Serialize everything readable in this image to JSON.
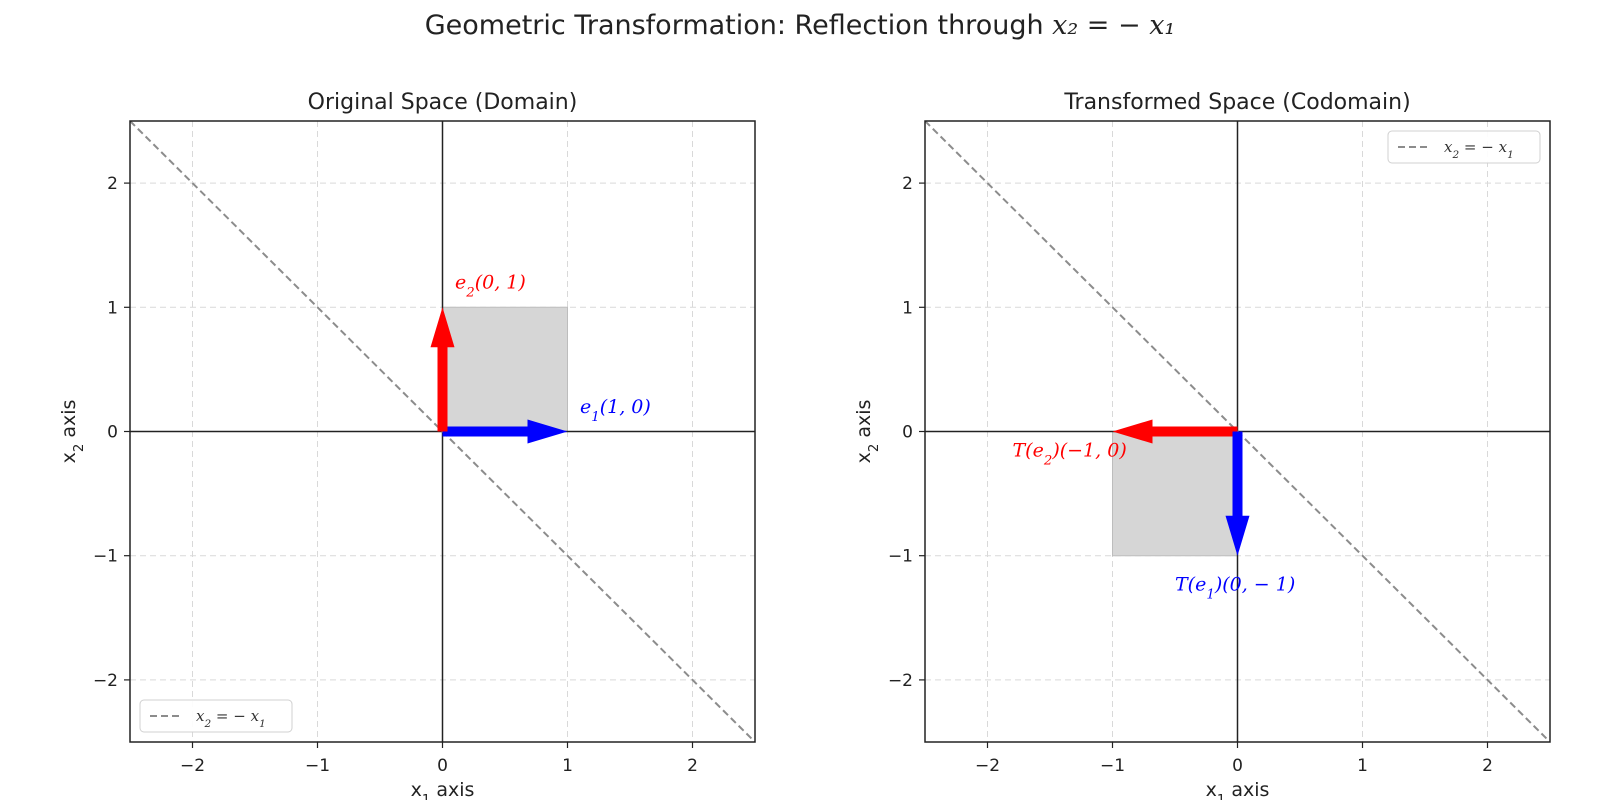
{
  "figure": {
    "title_prefix": "Geometric Transformation: Reflection through ",
    "title_math": "x₂ = − x₁"
  },
  "chart_data": [
    {
      "type": "line",
      "title": "Original Space (Domain)",
      "xlabel": "x₁ axis",
      "ylabel": "x₂ axis",
      "xlim": [
        -2.5,
        2.5
      ],
      "ylim": [
        -2.5,
        2.5
      ],
      "xticks": [
        -2,
        -1,
        0,
        1,
        2
      ],
      "yticks": [
        -2,
        -1,
        0,
        1,
        2
      ],
      "xtick_labels": [
        "−2",
        "−1",
        "0",
        "1",
        "2"
      ],
      "ytick_labels": [
        "−2",
        "−1",
        "0",
        "1",
        "2"
      ],
      "grid": true,
      "legend": {
        "position": "lower-left",
        "entries": [
          "x₂ = − x₁"
        ]
      },
      "reflection_line": {
        "label": "x₂ = − x₁",
        "points": [
          [
            -2.5,
            2.5
          ],
          [
            2.5,
            -2.5
          ]
        ],
        "color": "#8c8c8c",
        "style": "dashed"
      },
      "shaded_square": {
        "corners": [
          [
            0,
            0
          ],
          [
            1,
            0
          ],
          [
            1,
            1
          ],
          [
            0,
            1
          ]
        ],
        "color": "#d6d6d6"
      },
      "vectors": [
        {
          "name": "e1",
          "label": "e₁(1, 0)",
          "from": [
            0,
            0
          ],
          "to": [
            1,
            0
          ],
          "color": "#0000ff",
          "label_at": [
            1.1,
            0.15
          ]
        },
        {
          "name": "e2",
          "label": "e₂(0, 1)",
          "from": [
            0,
            0
          ],
          "to": [
            0,
            1
          ],
          "color": "#ff0000",
          "label_at": [
            0.1,
            1.15
          ]
        }
      ]
    },
    {
      "type": "line",
      "title": "Transformed Space (Codomain)",
      "xlabel": "x₁ axis",
      "ylabel": "x₂ axis",
      "xlim": [
        -2.5,
        2.5
      ],
      "ylim": [
        -2.5,
        2.5
      ],
      "xticks": [
        -2,
        -1,
        0,
        1,
        2
      ],
      "yticks": [
        -2,
        -1,
        0,
        1,
        2
      ],
      "xtick_labels": [
        "−2",
        "−1",
        "0",
        "1",
        "2"
      ],
      "ytick_labels": [
        "−2",
        "−1",
        "0",
        "1",
        "2"
      ],
      "grid": true,
      "legend": {
        "position": "upper-right",
        "entries": [
          "x₂ = − x₁"
        ]
      },
      "reflection_line": {
        "label": "x₂ = − x₁",
        "points": [
          [
            -2.5,
            2.5
          ],
          [
            2.5,
            -2.5
          ]
        ],
        "color": "#8c8c8c",
        "style": "dashed"
      },
      "shaded_square": {
        "corners": [
          [
            0,
            0
          ],
          [
            0,
            -1
          ],
          [
            -1,
            -1
          ],
          [
            -1,
            0
          ]
        ],
        "color": "#d6d6d6"
      },
      "vectors": [
        {
          "name": "t-e2",
          "label": "T(e₂)(−1, 0)",
          "from": [
            0,
            0
          ],
          "to": [
            -1,
            0
          ],
          "color": "#ff0000",
          "label_at": [
            -1.8,
            -0.2
          ]
        },
        {
          "name": "t-e1",
          "label": "T(e₁)(0, − 1)",
          "from": [
            0,
            0
          ],
          "to": [
            0,
            -1
          ],
          "color": "#0000ff",
          "label_at": [
            -0.5,
            -1.28
          ]
        }
      ]
    }
  ]
}
